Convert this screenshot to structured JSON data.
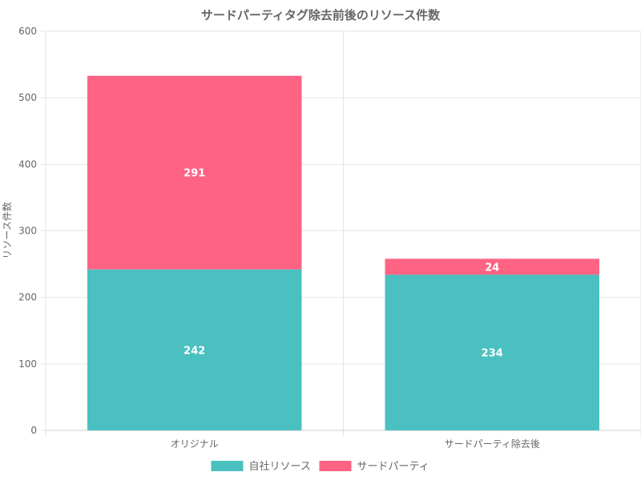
{
  "chart_data": {
    "type": "bar",
    "stacked": true,
    "title": "サードパーティタグ除去前後のリソース件数",
    "xlabel": "",
    "ylabel": "リソース件数",
    "categories": [
      "オリジナル",
      "サードパーティ除去後"
    ],
    "series": [
      {
        "name": "自社リソース",
        "color": "#4bc0c0",
        "values": [
          242,
          234
        ]
      },
      {
        "name": "サードパーティ",
        "color": "#ff6384",
        "values": [
          291,
          24
        ]
      }
    ],
    "ylim": [
      0,
      600
    ],
    "yticks": [
      0,
      100,
      200,
      300,
      400,
      500,
      600
    ],
    "grid": true,
    "legend": "bottom",
    "data_labels": true
  }
}
